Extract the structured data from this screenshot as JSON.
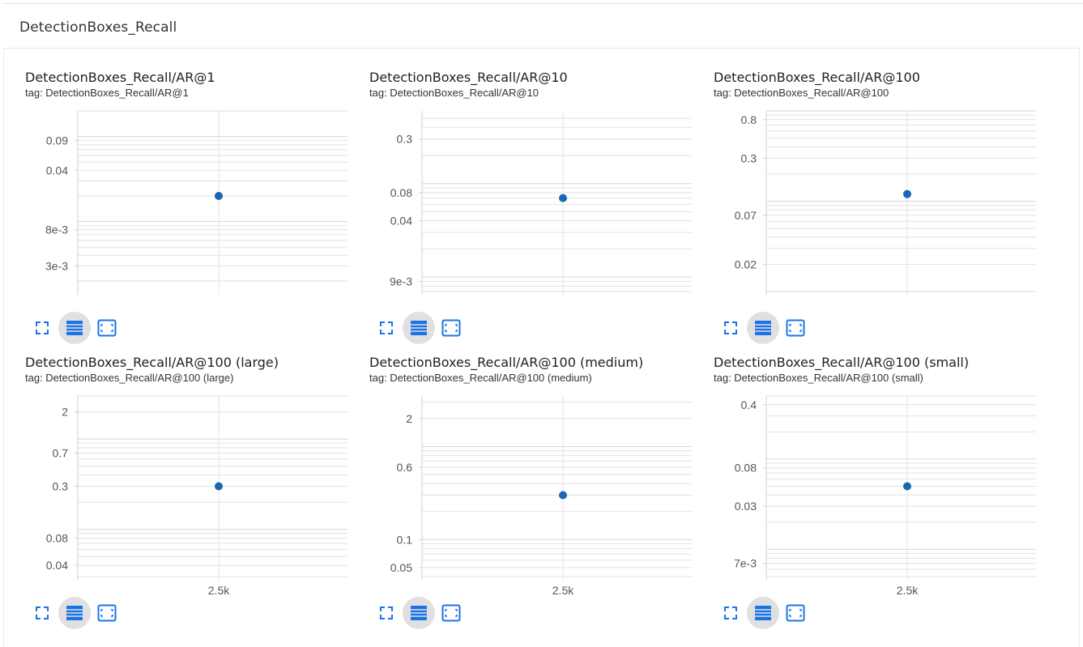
{
  "section": {
    "title": "DetectionBoxes_Recall"
  },
  "colors": {
    "point": "#1967b2",
    "icon": "#1a73e8",
    "grid": "#e2e2e2",
    "axis": "#d0d0d0",
    "label": "#555555"
  },
  "icons": [
    "fullscreen-icon",
    "log-scale-lines-icon",
    "fit-domain-icon"
  ],
  "cards": [
    {
      "title": "DetectionBoxes_Recall/AR@1",
      "tag": "tag: DetectionBoxes_Recall/AR@1"
    },
    {
      "title": "DetectionBoxes_Recall/AR@10",
      "tag": "tag: DetectionBoxes_Recall/AR@10"
    },
    {
      "title": "DetectionBoxes_Recall/AR@100",
      "tag": "tag: DetectionBoxes_Recall/AR@100"
    },
    {
      "title": "DetectionBoxes_Recall/AR@100 (large)",
      "tag": "tag: DetectionBoxes_Recall/AR@100 (large)"
    },
    {
      "title": "DetectionBoxes_Recall/AR@100 (medium)",
      "tag": "tag: DetectionBoxes_Recall/AR@100 (medium)"
    },
    {
      "title": "DetectionBoxes_Recall/AR@100 (small)",
      "tag": "tag: DetectionBoxes_Recall/AR@100 (small)"
    }
  ],
  "chart_data": [
    {
      "type": "scatter",
      "title": "DetectionBoxes_Recall/AR@1",
      "yscale": "log",
      "ylim": [
        0.0015,
        0.2
      ],
      "yticks": [
        0.09,
        0.04,
        0.008,
        0.003
      ],
      "yticklabels": [
        "0.09",
        "0.04",
        "8e-3",
        "3e-3"
      ],
      "xlim": [
        0,
        5000
      ],
      "xticks": [],
      "xticklabels": [],
      "points": [
        {
          "x": 2500,
          "y": 0.02
        }
      ],
      "grid": true
    },
    {
      "type": "scatter",
      "title": "DetectionBoxes_Recall/AR@10",
      "yscale": "log",
      "ylim": [
        0.007,
        0.6
      ],
      "yticks": [
        0.3,
        0.08,
        0.04,
        0.009
      ],
      "yticklabels": [
        "0.3",
        "0.08",
        "0.04",
        "9e-3"
      ],
      "xlim": [
        0,
        5000
      ],
      "xticks": [],
      "xticklabels": [],
      "points": [
        {
          "x": 2500,
          "y": 0.07
        }
      ],
      "grid": true
    },
    {
      "type": "scatter",
      "title": "DetectionBoxes_Recall/AR@100",
      "yscale": "log",
      "ylim": [
        0.01,
        1.0
      ],
      "yticks": [
        0.8,
        0.3,
        0.07,
        0.02
      ],
      "yticklabels": [
        "0.8",
        "0.3",
        "0.07",
        "0.02"
      ],
      "xlim": [
        0,
        5000
      ],
      "xticks": [],
      "xticklabels": [],
      "points": [
        {
          "x": 2500,
          "y": 0.12
        }
      ],
      "grid": true
    },
    {
      "type": "scatter",
      "title": "DetectionBoxes_Recall/AR@100 (large)",
      "yscale": "log",
      "ylim": [
        0.03,
        3.0
      ],
      "yticks": [
        2,
        0.7,
        0.3,
        0.08,
        0.04
      ],
      "yticklabels": [
        "2",
        "0.7",
        "0.3",
        "0.08",
        "0.04"
      ],
      "xlim": [
        0,
        5000
      ],
      "xticks": [
        2500
      ],
      "xticklabels": [
        "2.5k"
      ],
      "points": [
        {
          "x": 2500,
          "y": 0.3
        }
      ],
      "grid": true
    },
    {
      "type": "scatter",
      "title": "DetectionBoxes_Recall/AR@100 (medium)",
      "yscale": "log",
      "ylim": [
        0.04,
        3.5
      ],
      "yticks": [
        2,
        0.6,
        0.1,
        0.05
      ],
      "yticklabels": [
        "2",
        "0.6",
        "0.1",
        "0.05"
      ],
      "xlim": [
        0,
        5000
      ],
      "xticks": [
        2500
      ],
      "xticklabels": [
        "2.5k"
      ],
      "points": [
        {
          "x": 2500,
          "y": 0.3
        }
      ],
      "grid": true
    },
    {
      "type": "scatter",
      "title": "DetectionBoxes_Recall/AR@100 (small)",
      "yscale": "log",
      "ylim": [
        0.005,
        0.5
      ],
      "yticks": [
        0.4,
        0.08,
        0.03,
        0.007
      ],
      "yticklabels": [
        "0.4",
        "0.08",
        "0.03",
        "7e-3"
      ],
      "xlim": [
        0,
        5000
      ],
      "xticks": [
        2500
      ],
      "xticklabels": [
        "2.5k"
      ],
      "points": [
        {
          "x": 2500,
          "y": 0.05
        }
      ],
      "grid": true
    }
  ]
}
